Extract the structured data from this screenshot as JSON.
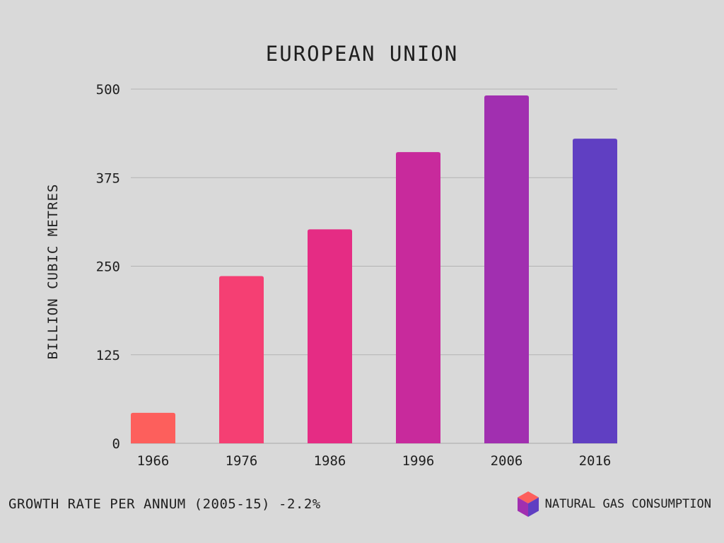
{
  "chart_data": {
    "type": "bar",
    "title": "EUROPEAN UNION",
    "ylabel": "BILLION CUBIC METRES",
    "xlabel": "",
    "categories": [
      "1966",
      "1976",
      "1986",
      "1996",
      "2006",
      "2016"
    ],
    "series": [
      {
        "name": "NATURAL GAS CONSUMPTION",
        "values": [
          43,
          236,
          302,
          411,
          491,
          430
        ]
      }
    ],
    "ylim": [
      0,
      500
    ],
    "yticks": [
      0,
      125,
      250,
      375,
      500
    ],
    "grid": true,
    "legend_position": "bottom-right",
    "bar_colors": [
      "#fd5f5c",
      "#f53f73",
      "#e52c84",
      "#c82a9c",
      "#a12fb0",
      "#603fc2"
    ]
  },
  "footer": {
    "growth_note": "GROWTH RATE PER ANNUM (2005-15) -2.2%"
  },
  "legend": {
    "label": "NATURAL GAS CONSUMPTION",
    "icon": "cube-icon"
  }
}
